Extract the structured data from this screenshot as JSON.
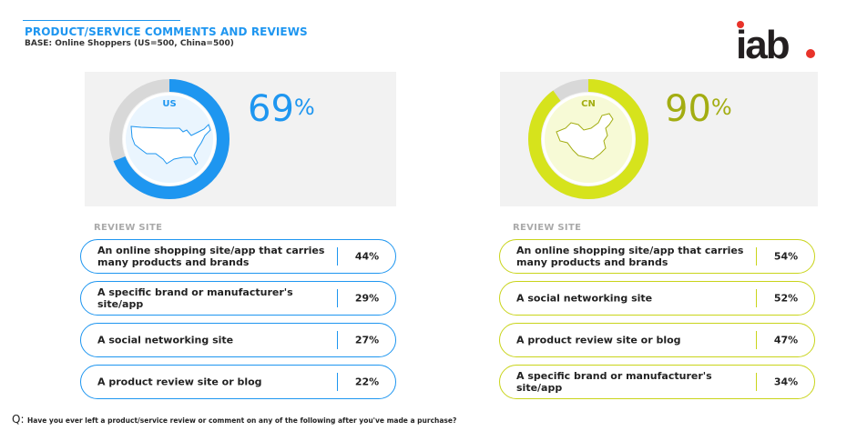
{
  "header": {
    "title": "PRODUCT/SERVICE COMMENTS AND REVIEWS",
    "base": "BASE: Online Shoppers (US=500, China=500)",
    "logo_text": "iab."
  },
  "colors": {
    "us": "#1e96f0",
    "cn": "#d6e31c",
    "cn_text": "#a3ad12",
    "ring_bg": "#d8d8d8",
    "logo_dot": "#e8332a"
  },
  "us": {
    "country_label": "US",
    "value": 69,
    "value_text": "69",
    "percent_sign": "%",
    "section_label": "REVIEW SITE",
    "rows": [
      {
        "label": "An online shopping site/app that carries many products and brands",
        "value": "44%"
      },
      {
        "label": "A specific brand or manufacturer's site/app",
        "value": "29%"
      },
      {
        "label": "A social networking site",
        "value": "27%"
      },
      {
        "label": "A product review site or blog",
        "value": "22%"
      }
    ]
  },
  "cn": {
    "country_label": "CN",
    "value": 90,
    "value_text": "90",
    "percent_sign": "%",
    "section_label": "REVIEW SITE",
    "rows": [
      {
        "label": "An online shopping site/app that carries many products and brands",
        "value": "54%"
      },
      {
        "label": "A social networking site",
        "value": "52%"
      },
      {
        "label": "A product review site or blog",
        "value": "47%"
      },
      {
        "label": "A specific brand or manufacturer's site/app",
        "value": "34%"
      }
    ]
  },
  "footer": {
    "q_prefix": "Q:",
    "question": "Have you ever left a product/service review or comment on any of the following after you've made a purchase?"
  }
}
